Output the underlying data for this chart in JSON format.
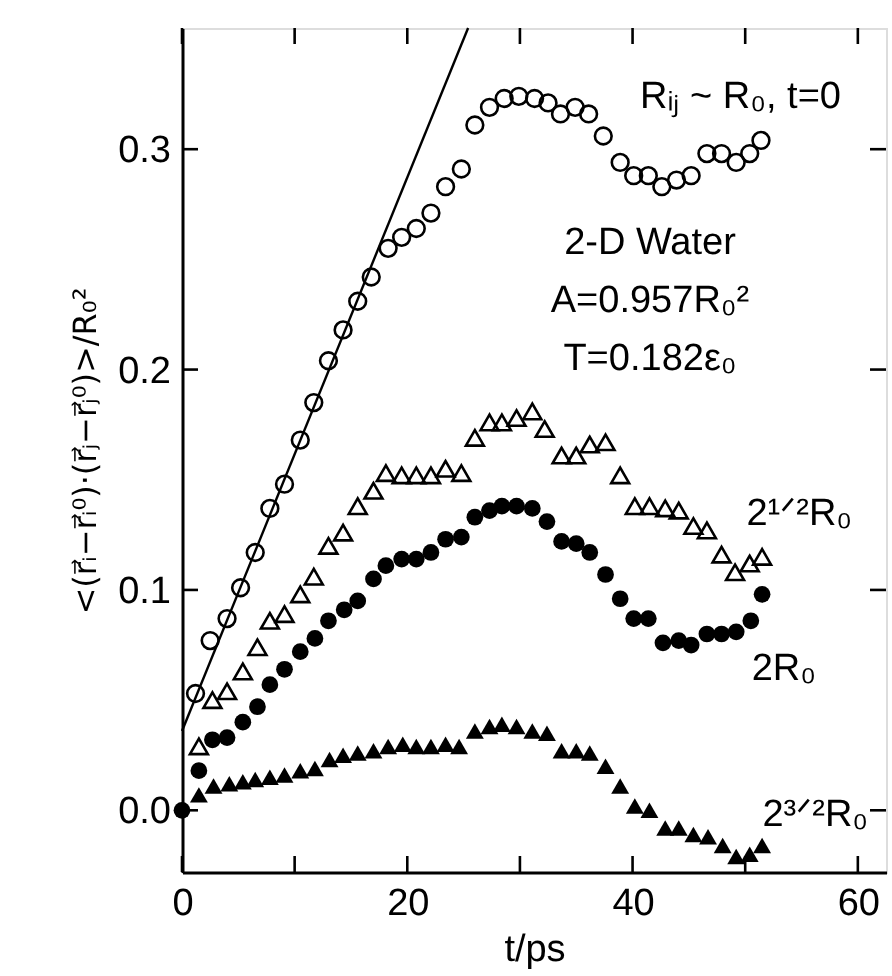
{
  "chart_data": {
    "type": "scatter",
    "xlabel": "t/ps",
    "ylabel": "<(r⃗ᵢ−r⃗ᵢ⁰)·(r⃗ⱼ−r⃗ⱼ⁰)>/R₀²",
    "xlim": [
      0,
      62.5
    ],
    "ylim": [
      -0.028,
      0.355
    ],
    "xticks": [
      0,
      {
        "value": 10,
        "label": null
      },
      20,
      {
        "value": 30,
        "label": null
      },
      40,
      {
        "value": 50,
        "label": null
      },
      60
    ],
    "yticks": [
      {
        "value": 0,
        "label": "0.0"
      },
      0.1,
      0.2,
      0.3
    ],
    "series": [
      {
        "name": "Rᵢⱼ ~ R₀, t=0",
        "color": "#000000",
        "marker": "circle",
        "x": [
          1.2,
          2.5,
          4.0,
          5.2,
          6.5,
          7.8,
          9.1,
          10.5,
          11.7,
          13.0,
          14.3,
          15.6,
          16.8,
          18.3,
          19.5,
          20.8,
          22.1,
          23.4,
          24.8,
          26.0,
          27.3,
          28.6,
          29.9,
          31.3,
          32.5,
          33.6,
          34.9,
          36.1,
          37.4,
          38.9,
          40.1,
          41.4,
          42.6,
          43.9,
          45.2,
          46.6,
          47.9,
          49.2,
          50.4,
          51.4
        ],
        "values": [
          0.053,
          0.077,
          0.087,
          0.101,
          0.117,
          0.137,
          0.148,
          0.168,
          0.185,
          0.204,
          0.218,
          0.231,
          0.242,
          0.255,
          0.26,
          0.264,
          0.271,
          0.283,
          0.291,
          0.311,
          0.319,
          0.323,
          0.324,
          0.323,
          0.321,
          0.316,
          0.319,
          0.316,
          0.306,
          0.294,
          0.288,
          0.288,
          0.283,
          0.286,
          0.288,
          0.298,
          0.298,
          0.294,
          0.298,
          0.304
        ]
      },
      {
        "name": "2¹ᐟ²R₀",
        "color": "#000000",
        "marker": "triangle",
        "x": [
          1.5,
          2.7,
          4.0,
          5.4,
          6.7,
          7.8,
          9.1,
          10.5,
          11.7,
          13.0,
          14.3,
          15.6,
          17.0,
          18.1,
          19.5,
          20.8,
          22.1,
          23.4,
          24.8,
          26.0,
          27.3,
          28.4,
          29.7,
          31.1,
          32.2,
          33.7,
          35.0,
          36.2,
          37.6,
          38.9,
          40.2,
          41.5,
          42.9,
          44.1,
          45.4,
          46.6,
          47.9,
          49.1,
          50.4,
          51.5
        ],
        "values": [
          0.029,
          0.05,
          0.054,
          0.063,
          0.074,
          0.086,
          0.089,
          0.098,
          0.106,
          0.12,
          0.126,
          0.138,
          0.145,
          0.153,
          0.152,
          0.152,
          0.152,
          0.155,
          0.153,
          0.169,
          0.176,
          0.176,
          0.178,
          0.181,
          0.173,
          0.161,
          0.161,
          0.166,
          0.167,
          0.152,
          0.138,
          0.138,
          0.137,
          0.136,
          0.129,
          0.127,
          0.116,
          0.108,
          0.112,
          0.115
        ]
      },
      {
        "name": "2R₀",
        "color": "#000000",
        "marker": "circle",
        "x": [
          0,
          1.5,
          2.7,
          4.0,
          5.4,
          6.7,
          7.8,
          9.1,
          10.5,
          11.8,
          13.0,
          14.4,
          15.6,
          17.0,
          18.1,
          19.5,
          20.8,
          22.1,
          23.4,
          24.8,
          26.0,
          27.3,
          28.4,
          29.7,
          31.1,
          32.4,
          33.7,
          35.0,
          36.2,
          37.6,
          38.9,
          40.1,
          41.4,
          42.7,
          44.1,
          45.2,
          46.6,
          47.9,
          49.2,
          50.5,
          51.5
        ],
        "values": [
          0,
          0.018,
          0.032,
          0.033,
          0.04,
          0.047,
          0.057,
          0.064,
          0.072,
          0.078,
          0.086,
          0.091,
          0.095,
          0.105,
          0.111,
          0.114,
          0.114,
          0.117,
          0.123,
          0.124,
          0.133,
          0.136,
          0.138,
          0.138,
          0.137,
          0.131,
          0.122,
          0.121,
          0.117,
          0.107,
          0.096,
          0.087,
          0.087,
          0.076,
          0.077,
          0.075,
          0.08,
          0.08,
          0.081,
          0.086,
          0.098
        ]
      },
      {
        "name": "2³ᐟ²R₀",
        "color": "#000000",
        "marker": "triangle",
        "x": [
          1.5,
          2.8,
          4.2,
          5.4,
          6.5,
          7.8,
          9.1,
          10.5,
          11.8,
          13.1,
          14.3,
          15.6,
          17.0,
          18.3,
          19.6,
          20.8,
          22.1,
          23.4,
          24.6,
          26.0,
          27.3,
          28.4,
          29.7,
          31.1,
          32.4,
          33.7,
          35.0,
          36.2,
          37.6,
          38.9,
          40.2,
          41.5,
          42.9,
          44.1,
          45.4,
          46.7,
          48.0,
          49.2,
          50.4,
          51.5
        ],
        "values": [
          0.007,
          0.011,
          0.012,
          0.013,
          0.014,
          0.015,
          0.016,
          0.018,
          0.019,
          0.023,
          0.025,
          0.026,
          0.027,
          0.029,
          0.03,
          0.029,
          0.029,
          0.03,
          0.029,
          0.036,
          0.038,
          0.039,
          0.038,
          0.036,
          0.035,
          0.027,
          0.027,
          0.026,
          0.02,
          0.011,
          0.002,
          0.0,
          -0.008,
          -0.008,
          -0.011,
          -0.012,
          -0.016,
          -0.021,
          -0.02,
          -0.016
        ]
      },
      {
        "type": "line",
        "color": "#000000",
        "marker": "none",
        "line_style": "solid",
        "x": [
          0,
          25.4
        ],
        "values": [
          0.036,
          0.355
        ]
      }
    ],
    "annotations": [
      "2-D Water",
      "A=0.957R₀²",
      "T=0.182ε₀"
    ]
  }
}
